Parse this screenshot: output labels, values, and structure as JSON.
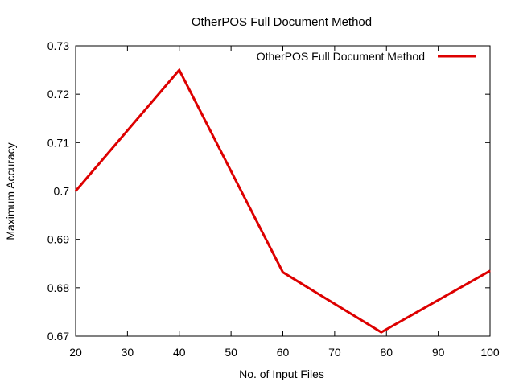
{
  "chart_data": {
    "type": "line",
    "title": "OtherPOS Full Document Method",
    "xlabel": "No. of Input Files",
    "ylabel": "Maximum Accuracy",
    "xlim": [
      20,
      100
    ],
    "ylim": [
      0.67,
      0.73
    ],
    "x_ticks": [
      20,
      30,
      40,
      50,
      60,
      70,
      80,
      90,
      100
    ],
    "x_tick_labels": [
      "20",
      "30",
      "40",
      "50",
      "60",
      "70",
      "80",
      "90",
      "100"
    ],
    "y_ticks": [
      0.67,
      0.68,
      0.69,
      0.7,
      0.71,
      0.72,
      0.73
    ],
    "y_tick_labels": [
      "0.67",
      "0.68",
      "0.69",
      "0.7",
      "0.71",
      "0.72",
      "0.73"
    ],
    "grid": false,
    "legend_position": "top-right",
    "series": [
      {
        "name": "OtherPOS Full Document Method",
        "color": "#dd0000",
        "x": [
          20,
          40,
          60,
          79,
          100
        ],
        "y": [
          0.7,
          0.725,
          0.6832,
          0.6708,
          0.6835
        ]
      }
    ]
  }
}
